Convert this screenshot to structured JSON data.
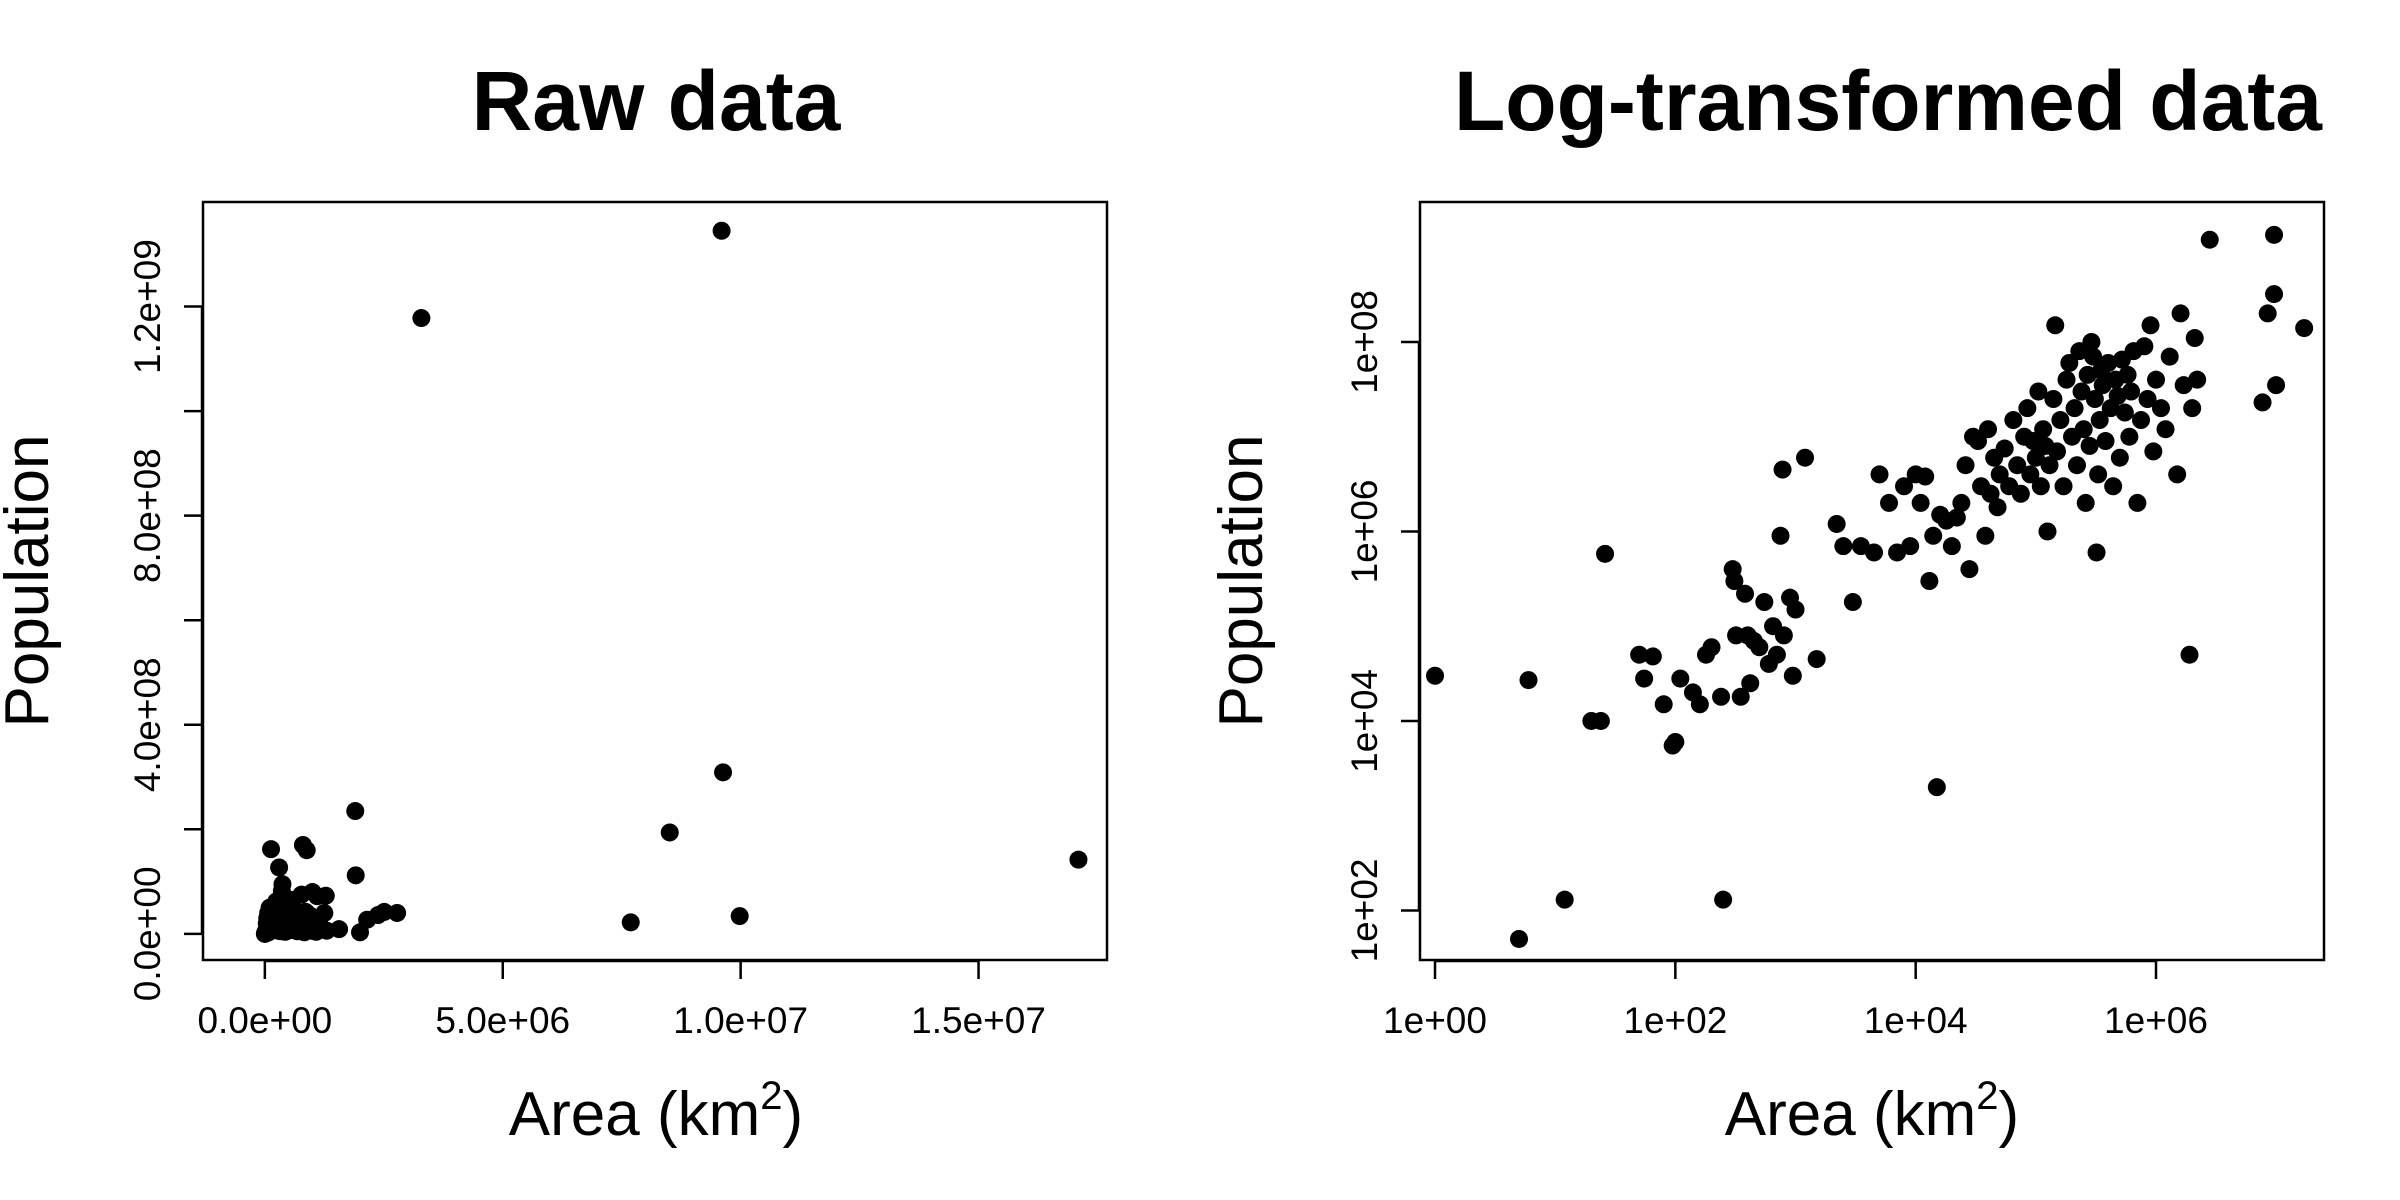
{
  "chart_data": [
    {
      "type": "scatter",
      "title": "Raw data",
      "xlabel": "Area (km",
      "xlabel_sup": "2",
      "xlabel_close": ")",
      "ylabel": "Population",
      "xlim": [
        -1300000,
        17700000
      ],
      "ylim": [
        -50000000,
        1400000000
      ],
      "x_ticks": [
        {
          "value": 0,
          "label": "0.0e+00"
        },
        {
          "value": 5000000,
          "label": "5.0e+06"
        },
        {
          "value": 10000000,
          "label": "1.0e+07"
        },
        {
          "value": 15000000,
          "label": "1.5e+07"
        }
      ],
      "y_ticks": [
        {
          "value": 0,
          "label": "0.0e+00"
        },
        {
          "value": 200000000,
          "label": ""
        },
        {
          "value": 400000000,
          "label": "4.0e+08"
        },
        {
          "value": 600000000,
          "label": ""
        },
        {
          "value": 800000000,
          "label": "8.0e+08"
        },
        {
          "value": 1000000000,
          "label": ""
        },
        {
          "value": 1200000000,
          "label": "1.2e+09"
        }
      ],
      "points": [
        [
          9600000,
          1345000000
        ],
        [
          3290000,
          1178000000
        ],
        [
          9630000,
          309000000
        ],
        [
          8510000,
          194000000
        ],
        [
          17100000,
          142000000
        ],
        [
          1900000,
          235000000
        ],
        [
          9980000,
          34000000
        ],
        [
          7690000,
          22000000
        ],
        [
          2780000,
          40000000
        ],
        [
          2380000,
          36000000
        ],
        [
          2150000,
          27000000
        ],
        [
          1910000,
          112000000
        ],
        [
          1280000,
          73000000
        ],
        [
          2510000,
          42000000
        ],
        [
          1560000,
          9000000
        ],
        [
          2000000,
          3000000
        ],
        [
          1300000,
          6000000
        ],
        [
          880000,
          160000000
        ],
        [
          800000,
          170000000
        ],
        [
          130000,
          162000000
        ],
        [
          300000,
          127000000
        ],
        [
          357000,
          82000000
        ],
        [
          550000,
          65000000
        ],
        [
          770000,
          75000000
        ],
        [
          1000000,
          80000000
        ],
        [
          1100000,
          72000000
        ],
        [
          240000,
          62000000
        ],
        [
          370000,
          95000000
        ],
        [
          600000,
          48000000
        ],
        [
          450000,
          56000000
        ],
        [
          200000,
          45000000
        ],
        [
          100000,
          50000000
        ],
        [
          50000,
          30000000
        ],
        [
          150000,
          20000000
        ],
        [
          250000,
          25000000
        ],
        [
          330000,
          33000000
        ],
        [
          410000,
          18000000
        ],
        [
          500000,
          22000000
        ],
        [
          650000,
          30000000
        ],
        [
          700000,
          15000000
        ],
        [
          850000,
          25000000
        ],
        [
          950000,
          35000000
        ],
        [
          1050000,
          20000000
        ],
        [
          1150000,
          30000000
        ],
        [
          1200000,
          10000000
        ],
        [
          60000,
          10000000
        ],
        [
          20000,
          5000000
        ],
        [
          10000,
          1000000
        ],
        [
          80000,
          3000000
        ],
        [
          120000,
          8000000
        ],
        [
          180000,
          12000000
        ],
        [
          220000,
          8000000
        ],
        [
          280000,
          6000000
        ],
        [
          320000,
          15000000
        ],
        [
          390000,
          9000000
        ],
        [
          430000,
          4000000
        ],
        [
          480000,
          12000000
        ],
        [
          520000,
          7000000
        ],
        [
          580000,
          18000000
        ],
        [
          620000,
          10000000
        ],
        [
          680000,
          5000000
        ],
        [
          740000,
          12000000
        ],
        [
          790000,
          8000000
        ],
        [
          830000,
          3000000
        ],
        [
          900000,
          14000000
        ],
        [
          980000,
          6000000
        ],
        [
          1020000,
          10000000
        ],
        [
          1080000,
          4000000
        ],
        [
          1130000,
          12000000
        ],
        [
          1250000,
          40000000
        ],
        [
          30000,
          2000000
        ],
        [
          5000,
          500000
        ],
        [
          40000,
          20000000
        ],
        [
          90000,
          15000000
        ],
        [
          160000,
          30000000
        ],
        [
          210000,
          40000000
        ],
        [
          260000,
          10000000
        ],
        [
          310000,
          50000000
        ],
        [
          340000,
          5000000
        ],
        [
          420000,
          28000000
        ],
        [
          460000,
          38000000
        ],
        [
          560000,
          26000000
        ],
        [
          640000,
          40000000
        ],
        [
          720000,
          32000000
        ],
        [
          760000,
          22000000
        ],
        [
          860000,
          42000000
        ],
        [
          940000,
          18000000
        ],
        [
          1000,
          80000
        ],
        [
          500,
          30000
        ],
        [
          70000,
          40000000
        ]
      ]
    },
    {
      "type": "scatter",
      "title": "Log-transformed data",
      "xlabel": "Area (km",
      "xlabel_sup": "2",
      "xlabel_close": ")",
      "ylabel": "Population",
      "x_scale": "log",
      "y_scale": "log",
      "xlim": [
        0.75,
        25000000
      ],
      "ylim": [
        30,
        3000000000
      ],
      "x_ticks": [
        {
          "value": 1,
          "label": "1e+00"
        },
        {
          "value": 100,
          "label": "1e+02"
        },
        {
          "value": 10000,
          "label": "1e+04"
        },
        {
          "value": 1000000,
          "label": "1e+06"
        }
      ],
      "y_ticks": [
        {
          "value": 100,
          "label": "1e+02"
        },
        {
          "value": 10000,
          "label": "1e+04"
        },
        {
          "value": 1000000,
          "label": "1e+06"
        },
        {
          "value": 100000000,
          "label": "1e+08"
        }
      ],
      "points": [
        [
          1,
          30000
        ],
        [
          5,
          50
        ],
        [
          6,
          27000
        ],
        [
          12,
          130
        ],
        [
          20,
          10000
        ],
        [
          24,
          10000
        ],
        [
          26,
          580000
        ],
        [
          50,
          50000
        ],
        [
          55,
          28000
        ],
        [
          65,
          48000
        ],
        [
          80,
          15000
        ],
        [
          95,
          5500
        ],
        [
          100,
          6000
        ],
        [
          110,
          28000
        ],
        [
          140,
          20000
        ],
        [
          160,
          15000
        ],
        [
          180,
          50000
        ],
        [
          200,
          60000
        ],
        [
          240,
          18000
        ],
        [
          250,
          130
        ],
        [
          300,
          400000
        ],
        [
          310,
          300000
        ],
        [
          320,
          80000
        ],
        [
          350,
          18000
        ],
        [
          380,
          220000
        ],
        [
          400,
          80000
        ],
        [
          420,
          25000
        ],
        [
          450,
          70000
        ],
        [
          500,
          60000
        ],
        [
          550,
          180000
        ],
        [
          600,
          40000
        ],
        [
          650,
          100000
        ],
        [
          700,
          50000
        ],
        [
          750,
          900000
        ],
        [
          780,
          4500000
        ],
        [
          800,
          80000
        ],
        [
          900,
          200000
        ],
        [
          950,
          30000
        ],
        [
          1000,
          150000
        ],
        [
          1200,
          6000000
        ],
        [
          1500,
          45000
        ],
        [
          2200,
          1200000
        ],
        [
          2500,
          700000
        ],
        [
          3000,
          180000
        ],
        [
          3500,
          700000
        ],
        [
          4500,
          600000
        ],
        [
          5000,
          4000000
        ],
        [
          6000,
          2000000
        ],
        [
          7000,
          600000
        ],
        [
          8000,
          3000000
        ],
        [
          9000,
          700000
        ],
        [
          10000,
          4000000
        ],
        [
          11000,
          2000000
        ],
        [
          12000,
          3800000
        ],
        [
          13000,
          300000
        ],
        [
          14000,
          900000
        ],
        [
          15000,
          2000
        ],
        [
          16000,
          1500000
        ],
        [
          18000,
          1300000
        ],
        [
          20000,
          700000
        ],
        [
          22000,
          1400000
        ],
        [
          24000,
          2000000
        ],
        [
          26000,
          5000000
        ],
        [
          28000,
          400000
        ],
        [
          30000,
          10000000
        ],
        [
          33000,
          9000000
        ],
        [
          35000,
          3000000
        ],
        [
          38000,
          900000
        ],
        [
          40000,
          12000000
        ],
        [
          42000,
          2500000
        ],
        [
          45000,
          6000000
        ],
        [
          48000,
          1800000
        ],
        [
          50000,
          4000000
        ],
        [
          55000,
          7500000
        ],
        [
          60000,
          3000000
        ],
        [
          65000,
          15000000
        ],
        [
          70000,
          5000000
        ],
        [
          75000,
          2500000
        ],
        [
          80000,
          10000000
        ],
        [
          85000,
          20000000
        ],
        [
          90000,
          4000000
        ],
        [
          95000,
          9000000
        ],
        [
          100000,
          6000000
        ],
        [
          105000,
          30000000
        ],
        [
          110000,
          3000000
        ],
        [
          115000,
          12000000
        ],
        [
          120000,
          8000000
        ],
        [
          125000,
          1000000
        ],
        [
          130000,
          5000000
        ],
        [
          140000,
          25000000
        ],
        [
          145000,
          150000000
        ],
        [
          150000,
          7000000
        ],
        [
          160000,
          15000000
        ],
        [
          170000,
          3000000
        ],
        [
          180000,
          40000000
        ],
        [
          190000,
          60000000
        ],
        [
          200000,
          10000000
        ],
        [
          210000,
          20000000
        ],
        [
          220000,
          5000000
        ],
        [
          230000,
          80000000
        ],
        [
          240000,
          30000000
        ],
        [
          250000,
          12000000
        ],
        [
          260000,
          2000000
        ],
        [
          270000,
          45000000
        ],
        [
          280000,
          8000000
        ],
        [
          290000,
          100000000
        ],
        [
          300000,
          70000000
        ],
        [
          310000,
          25000000
        ],
        [
          320000,
          600000
        ],
        [
          330000,
          4000000
        ],
        [
          340000,
          15000000
        ],
        [
          350000,
          50000000
        ],
        [
          360000,
          35000000
        ],
        [
          380000,
          9000000
        ],
        [
          400000,
          60000000
        ],
        [
          420000,
          20000000
        ],
        [
          440000,
          3000000
        ],
        [
          460000,
          40000000
        ],
        [
          480000,
          27000000
        ],
        [
          500000,
          6000000
        ],
        [
          520000,
          65000000
        ],
        [
          550000,
          18000000
        ],
        [
          580000,
          45000000
        ],
        [
          600000,
          10000000
        ],
        [
          620000,
          30000000
        ],
        [
          650000,
          80000000
        ],
        [
          700000,
          2000000
        ],
        [
          750000,
          15000000
        ],
        [
          800000,
          90000000
        ],
        [
          850000,
          25000000
        ],
        [
          900000,
          150000000
        ],
        [
          950000,
          7000000
        ],
        [
          1000000,
          40000000
        ],
        [
          1100000,
          20000000
        ],
        [
          1200000,
          12000000
        ],
        [
          1300000,
          70000000
        ],
        [
          1500000,
          4000000
        ],
        [
          1600000,
          200000000
        ],
        [
          1700000,
          35000000
        ],
        [
          1900000,
          50000
        ],
        [
          2000000,
          20000000
        ],
        [
          2100000,
          110000000
        ],
        [
          2200000,
          40000000
        ],
        [
          2800000,
          1200000000
        ],
        [
          7700000,
          23000000
        ],
        [
          8500000,
          200000000
        ],
        [
          9600000,
          320000000
        ],
        [
          9600000,
          1350000000
        ],
        [
          9980000,
          35000000
        ],
        [
          17100000,
          140000000
        ]
      ]
    }
  ]
}
